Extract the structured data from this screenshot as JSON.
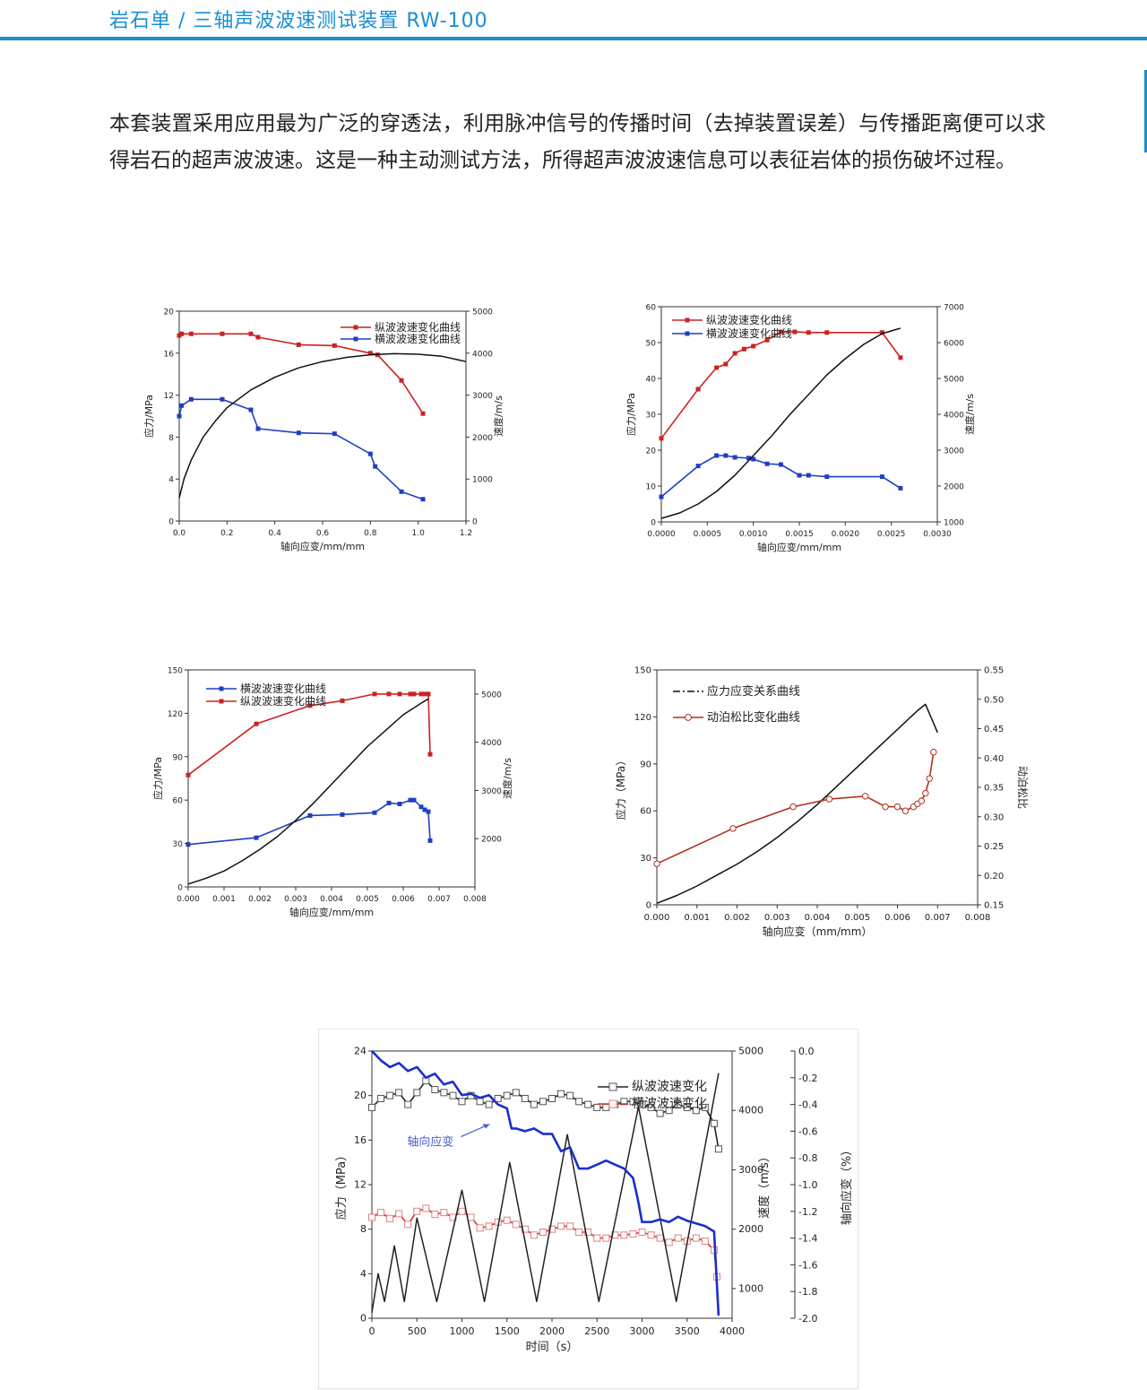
{
  "header": {
    "title": "岩石单 / 三轴声波波速测试装置 RW-100",
    "accent_color": "#1a8fd1"
  },
  "intro": {
    "text": "本套装置采用应用最为广泛的穿透法，利用脉冲信号的传播时间（去掉装置误差）与传播距离便可以求得岩石的超声波波速。这是一种主动测试方法，所得超声波波速信息可以表征岩体的损伤破坏过程。"
  },
  "chart_data": [
    {
      "type": "line",
      "xlabel": "轴向应变/mm/mm",
      "ylabel": "应力/MPa",
      "y2label": "速度/m/s",
      "xlim": [
        0,
        1.2
      ],
      "ylim": [
        0,
        20
      ],
      "y2lim": [
        0,
        5000
      ],
      "xticks": [
        "0.0",
        "0.2",
        "0.4",
        "0.6",
        "0.8",
        "1.0",
        "1.2"
      ],
      "yticks": [
        "0",
        "4",
        "8",
        "12",
        "16",
        "20"
      ],
      "y2ticks": [
        "0",
        "1000",
        "2000",
        "3000",
        "4000",
        "5000"
      ],
      "legend_position": "top-right",
      "series": [
        {
          "name": "纵波波速变化曲线",
          "axis": "y2",
          "color": "#cc2222",
          "marker": "square",
          "x": [
            0.0,
            0.01,
            0.05,
            0.18,
            0.3,
            0.33,
            0.5,
            0.65,
            0.8,
            0.83,
            0.93,
            1.02
          ],
          "y": [
            4420,
            4460,
            4460,
            4460,
            4460,
            4380,
            4200,
            4180,
            4000,
            3960,
            3350,
            2560
          ]
        },
        {
          "name": "横波波速变化曲线",
          "axis": "y2",
          "color": "#1f3fc0",
          "marker": "square",
          "x": [
            0.0,
            0.01,
            0.05,
            0.18,
            0.3,
            0.33,
            0.5,
            0.65,
            0.8,
            0.82,
            0.93,
            1.02
          ],
          "y": [
            2500,
            2750,
            2900,
            2900,
            2650,
            2200,
            2100,
            2080,
            1600,
            1300,
            700,
            520
          ]
        },
        {
          "name": "",
          "axis": "y",
          "color": "#111111",
          "marker": "none",
          "x": [
            0.0,
            0.02,
            0.05,
            0.1,
            0.15,
            0.2,
            0.3,
            0.4,
            0.5,
            0.6,
            0.7,
            0.8,
            0.9,
            1.0,
            1.1,
            1.2
          ],
          "y": [
            2.2,
            4.0,
            5.8,
            8.0,
            9.5,
            10.8,
            12.5,
            13.7,
            14.6,
            15.2,
            15.6,
            15.85,
            15.95,
            15.9,
            15.7,
            15.2
          ]
        }
      ]
    },
    {
      "type": "line",
      "xlabel": "轴向应变/mm/mm",
      "ylabel": "应力/MPa",
      "y2label": "速度/m/s",
      "xlim": [
        0,
        0.003
      ],
      "ylim": [
        0,
        60
      ],
      "y2lim": [
        1000,
        7000
      ],
      "xticks": [
        "0.0000",
        "0.0005",
        "0.0010",
        "0.0015",
        "0.0020",
        "0.0025",
        "0.0030"
      ],
      "yticks": [
        "0",
        "10",
        "20",
        "30",
        "40",
        "50",
        "60"
      ],
      "y2ticks": [
        "1000",
        "2000",
        "3000",
        "4000",
        "5000",
        "6000",
        "7000"
      ],
      "legend_position": "top-left",
      "series": [
        {
          "name": "纵波波速变化曲线",
          "axis": "y2",
          "color": "#cc2222",
          "marker": "square",
          "x": [
            0.0,
            0.0004,
            0.0006,
            0.0007,
            0.0008,
            0.0009,
            0.001,
            0.00115,
            0.0013,
            0.00145,
            0.0016,
            0.0018,
            0.0024,
            0.0026
          ],
          "y": [
            3330,
            4700,
            5300,
            5400,
            5700,
            5820,
            5900,
            6070,
            6300,
            6300,
            6280,
            6280,
            6280,
            5580
          ]
        },
        {
          "name": "横波波速变化曲线",
          "axis": "y2",
          "color": "#1f3fc0",
          "marker": "square",
          "x": [
            0.0,
            0.0004,
            0.0006,
            0.0007,
            0.0008,
            0.00095,
            0.001,
            0.00115,
            0.0013,
            0.0015,
            0.0016,
            0.0018,
            0.0024,
            0.0026
          ],
          "y": [
            1700,
            2560,
            2850,
            2850,
            2800,
            2780,
            2750,
            2620,
            2600,
            2300,
            2300,
            2260,
            2260,
            1940
          ]
        },
        {
          "name": "",
          "axis": "y",
          "color": "#111111",
          "marker": "none",
          "x": [
            0.0,
            0.0002,
            0.0004,
            0.0006,
            0.0008,
            0.001,
            0.0012,
            0.0014,
            0.0016,
            0.0018,
            0.002,
            0.0022,
            0.0024,
            0.0026
          ],
          "y": [
            1,
            2.5,
            5,
            8.5,
            13,
            18.5,
            24,
            30,
            35.5,
            41,
            45.5,
            49.5,
            52.5,
            54
          ]
        }
      ]
    },
    {
      "type": "line",
      "xlabel": "轴向应变/mm/mm",
      "ylabel": "应力/MPa",
      "y2label": "速度/m/s",
      "xlim": [
        0,
        0.008
      ],
      "ylim": [
        0,
        150
      ],
      "y2lim": [
        1000,
        5500
      ],
      "xticks": [
        "0.000",
        "0.001",
        "0.002",
        "0.003",
        "0.004",
        "0.005",
        "0.006",
        "0.007",
        "0.008"
      ],
      "yticks": [
        "0",
        "30",
        "60",
        "90",
        "120",
        "150"
      ],
      "y2ticks": [
        "2000",
        "3000",
        "4000",
        "5000"
      ],
      "legend_position": "top-left",
      "series": [
        {
          "name": "横波波速变化曲线",
          "axis": "y2",
          "color": "#1f3fc0",
          "marker": "square",
          "x": [
            0.0,
            0.0019,
            0.0034,
            0.0043,
            0.0052,
            0.0056,
            0.0059,
            0.0062,
            0.0063,
            0.0065,
            0.0066,
            0.0067,
            0.00675
          ],
          "y": [
            1880,
            2020,
            2480,
            2500,
            2540,
            2740,
            2720,
            2800,
            2800,
            2660,
            2600,
            2560,
            1960
          ]
        },
        {
          "name": "纵波波速变化曲线",
          "axis": "y2",
          "color": "#cc2222",
          "marker": "square",
          "x": [
            0.0,
            0.0019,
            0.0034,
            0.0043,
            0.0052,
            0.0056,
            0.0059,
            0.0062,
            0.0063,
            0.0065,
            0.0066,
            0.0067,
            0.00675
          ],
          "y": [
            3320,
            4380,
            4760,
            4860,
            5000,
            5000,
            5000,
            5000,
            5000,
            5000,
            5000,
            5000,
            3750
          ]
        },
        {
          "name": "",
          "axis": "y",
          "color": "#111111",
          "marker": "none",
          "x": [
            0.0,
            0.0005,
            0.001,
            0.0015,
            0.002,
            0.0025,
            0.003,
            0.0035,
            0.004,
            0.0045,
            0.005,
            0.0055,
            0.006,
            0.0065,
            0.0067
          ],
          "y": [
            2,
            6,
            11,
            18,
            26,
            35,
            46,
            58,
            71,
            84,
            97,
            108,
            119,
            127,
            130
          ]
        }
      ]
    },
    {
      "type": "line",
      "xlabel": "轴向应变（mm/mm）",
      "ylabel": "应力（MPa）",
      "y2label": "动泊松比",
      "xlim": [
        0,
        0.008
      ],
      "ylim": [
        0,
        150
      ],
      "y2lim": [
        0.15,
        0.55
      ],
      "xticks": [
        "0.000",
        "0.001",
        "0.002",
        "0.003",
        "0.004",
        "0.005",
        "0.006",
        "0.007",
        "0.008"
      ],
      "yticks": [
        "0",
        "30",
        "60",
        "90",
        "120",
        "150"
      ],
      "y2ticks": [
        "0.15",
        "0.20",
        "0.25",
        "0.30",
        "0.35",
        "0.40",
        "0.45",
        "0.50",
        "0.55"
      ],
      "legend_position": "top-left",
      "series": [
        {
          "name": "应力应变关系曲线",
          "axis": "y",
          "color": "#111111",
          "marker": "none",
          "x": [
            0.0,
            0.0005,
            0.001,
            0.0015,
            0.002,
            0.0025,
            0.003,
            0.0035,
            0.004,
            0.0045,
            0.005,
            0.0055,
            0.006,
            0.0065,
            0.0067,
            0.0069,
            0.007
          ],
          "y": [
            1,
            6,
            12,
            19,
            26,
            34,
            43,
            53,
            64,
            76,
            88,
            100,
            112,
            124,
            128,
            116,
            110
          ]
        },
        {
          "name": "动泊松比变化曲线",
          "axis": "y2",
          "color": "#b03020",
          "marker": "circle",
          "x": [
            0.0,
            0.0019,
            0.0034,
            0.0043,
            0.0052,
            0.0057,
            0.006,
            0.0062,
            0.0064,
            0.0065,
            0.0066,
            0.0067,
            0.0068,
            0.0069
          ],
          "y": [
            0.22,
            0.28,
            0.317,
            0.33,
            0.335,
            0.317,
            0.317,
            0.31,
            0.317,
            0.322,
            0.327,
            0.34,
            0.365,
            0.41
          ]
        }
      ]
    },
    {
      "type": "line",
      "xlabel": "时间（s）",
      "ylabel": "应力（MPa）",
      "y2label": "速度（m/s）",
      "y3label": "轴向应变（%）",
      "xlim": [
        0,
        4000
      ],
      "ylim": [
        0,
        24
      ],
      "y2lim": [
        500,
        5000
      ],
      "y3lim": [
        -2.0,
        0.0
      ],
      "xticks": [
        "0",
        "500",
        "1000",
        "1500",
        "2000",
        "2500",
        "3000",
        "3500",
        "4000"
      ],
      "yticks": [
        "0",
        "4",
        "8",
        "12",
        "16",
        "20",
        "24"
      ],
      "y2ticks": [
        "1000",
        "2000",
        "3000",
        "4000",
        "5000"
      ],
      "y3ticks": [
        "0.0",
        "-0.2",
        "-0.4",
        "-0.6",
        "-0.8",
        "-1.0",
        "-1.2",
        "-1.4",
        "-1.6",
        "-1.8",
        "-2.0"
      ],
      "legend_position": "top-right",
      "annotation": "轴向应变",
      "series": [
        {
          "name": "纵波波速变化",
          "axis": "y2",
          "color": "#222222",
          "marker": "open-square",
          "x": [
            0,
            100,
            200,
            300,
            400,
            500,
            600,
            700,
            800,
            900,
            1000,
            1100,
            1200,
            1300,
            1400,
            1500,
            1600,
            1700,
            1800,
            1900,
            2000,
            2100,
            2200,
            2300,
            2400,
            2500,
            2600,
            2700,
            2800,
            2900,
            3000,
            3100,
            3200,
            3300,
            3400,
            3500,
            3600,
            3700,
            3800,
            3850
          ],
          "y": [
            4050,
            4200,
            4250,
            4300,
            4100,
            4300,
            4500,
            4350,
            4300,
            4250,
            4150,
            4250,
            4150,
            4100,
            4200,
            4250,
            4300,
            4200,
            4100,
            4150,
            4200,
            4280,
            4250,
            4150,
            4100,
            4050,
            4050,
            4100,
            4150,
            4150,
            4100,
            4050,
            3950,
            4000,
            4100,
            4050,
            4000,
            4050,
            3780,
            3350
          ]
        },
        {
          "name": "横波波速变化",
          "axis": "y2",
          "color": "#cc3333",
          "marker": "open-square",
          "x": [
            0,
            100,
            200,
            300,
            400,
            500,
            600,
            700,
            800,
            900,
            1000,
            1100,
            1200,
            1300,
            1400,
            1500,
            1600,
            1700,
            1800,
            1900,
            2000,
            2100,
            2200,
            2300,
            2400,
            2500,
            2600,
            2700,
            2800,
            2900,
            3000,
            3100,
            3200,
            3300,
            3400,
            3500,
            3600,
            3700,
            3800,
            3830
          ],
          "y": [
            2200,
            2280,
            2180,
            2260,
            2080,
            2300,
            2350,
            2250,
            2280,
            2200,
            2300,
            2200,
            2020,
            2050,
            2120,
            2150,
            2080,
            2000,
            1900,
            1950,
            2000,
            2050,
            2050,
            1950,
            1950,
            1850,
            1850,
            1900,
            1900,
            1920,
            1950,
            1900,
            1850,
            1780,
            1850,
            1800,
            1850,
            1800,
            1650,
            1200
          ]
        },
        {
          "name": "",
          "axis": "y",
          "color": "#222222",
          "marker": "none",
          "x": [
            0,
            70,
            140,
            250,
            360,
            500,
            720,
            1000,
            1250,
            1530,
            1830,
            2170,
            2520,
            2960,
            3380,
            3850
          ],
          "y": [
            0.5,
            4,
            1.5,
            6.5,
            1.5,
            9,
            1.5,
            11.5,
            1.5,
            14,
            1.5,
            16.5,
            1.5,
            19,
            1.5,
            22
          ]
        },
        {
          "name": "",
          "axis": "y3",
          "color": "#1a2fcc",
          "marker": "none",
          "x": [
            0,
            100,
            200,
            300,
            400,
            500,
            600,
            700,
            800,
            900,
            1000,
            1100,
            1200,
            1300,
            1400,
            1500,
            1550,
            1600,
            1700,
            1800,
            1900,
            2000,
            2100,
            2200,
            2300,
            2400,
            2500,
            2600,
            2700,
            2800,
            2900,
            2950,
            3000,
            3100,
            3200,
            3300,
            3400,
            3500,
            3600,
            3700,
            3800,
            3850
          ],
          "y": [
            0.0,
            -0.07,
            -0.12,
            -0.09,
            -0.15,
            -0.12,
            -0.2,
            -0.17,
            -0.25,
            -0.23,
            -0.33,
            -0.32,
            -0.35,
            -0.33,
            -0.4,
            -0.43,
            -0.58,
            -0.58,
            -0.6,
            -0.58,
            -0.62,
            -0.62,
            -0.75,
            -0.72,
            -0.88,
            -0.88,
            -0.85,
            -0.82,
            -0.85,
            -0.88,
            -0.95,
            -1.1,
            -1.28,
            -1.28,
            -1.26,
            -1.28,
            -1.24,
            -1.27,
            -1.29,
            -1.31,
            -1.35,
            -1.98
          ]
        }
      ]
    }
  ]
}
